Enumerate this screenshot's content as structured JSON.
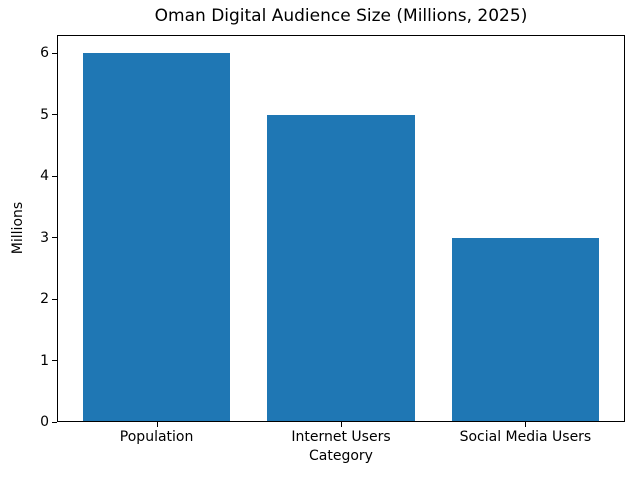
{
  "figure": {
    "background": "#ffffff",
    "text_color": "#000000",
    "spine_color": "#000000"
  },
  "chart_data": {
    "type": "bar",
    "title": "Oman Digital Audience Size (Millions, 2025)",
    "categories": [
      "Population",
      "Internet Users",
      "Social Media Users"
    ],
    "values": [
      6,
      5,
      3
    ],
    "xlabel": "Category",
    "ylabel": "Millions",
    "ylim": [
      0,
      6.3
    ],
    "yticks": [
      0,
      1,
      2,
      3,
      4,
      5,
      6
    ],
    "bar_color": "#1f77b4",
    "grid": false,
    "legend_position": "none"
  }
}
